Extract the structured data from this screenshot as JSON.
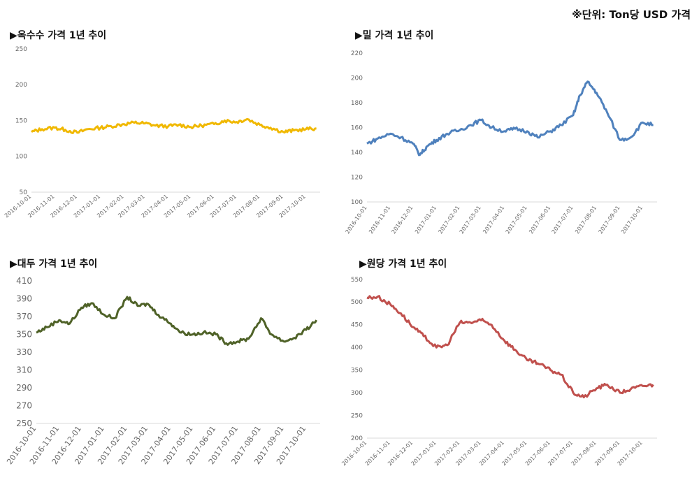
{
  "unit_note": "※단위: Ton당 USD 가격",
  "charts": [
    {
      "title": "▶옥수수 가격 1년 추이",
      "color": "#F0B800"
    },
    {
      "title": "▶밀 가격 1년 추이",
      "color": "#4F81BD"
    },
    {
      "title": "▶대두 가격 1년 추이",
      "color": "#4F6228"
    },
    {
      "title": "▶원당 가격 1년 추이",
      "color": "#C0504D"
    }
  ],
  "chart_data": [
    {
      "type": "line",
      "title": "옥수수 가격 1년 추이",
      "x_ticks": [
        "2016-10-01",
        "2016-11-01",
        "2016-12-01",
        "2017-01-01",
        "2017-02-01",
        "2017-03-01",
        "2017-04-01",
        "2017-05-01",
        "2017-06-01",
        "2017-07-01",
        "2017-08-01",
        "2017-09-01",
        "2017-10-01"
      ],
      "y_ticks": [
        "250",
        "200",
        "150",
        "100",
        "50"
      ],
      "ylim": [
        50,
        250
      ],
      "grid": false,
      "series": [
        {
          "x": [
            "2016-10-01",
            "2016-10-15",
            "2016-11-01",
            "2016-11-15",
            "2016-12-01",
            "2016-12-15",
            "2017-01-01",
            "2017-01-15",
            "2017-02-01",
            "2017-02-15",
            "2017-03-01",
            "2017-03-15",
            "2017-04-01",
            "2017-04-15",
            "2017-05-01",
            "2017-05-15",
            "2017-06-01",
            "2017-06-15",
            "2017-07-01",
            "2017-07-15",
            "2017-08-01",
            "2017-08-15",
            "2017-09-01",
            "2017-09-15",
            "2017-10-01",
            "2017-10-15"
          ],
          "values": [
            134,
            138,
            140,
            137,
            133,
            138,
            140,
            142,
            145,
            147,
            146,
            143,
            142,
            144,
            141,
            143,
            145,
            150,
            148,
            152,
            144,
            140,
            134,
            136,
            138,
            139
          ]
        }
      ]
    },
    {
      "type": "line",
      "title": "밀 가격 1년 추이",
      "x_ticks": [
        "2016-10-01",
        "2016-11-01",
        "2016-12-01",
        "2017-01-01",
        "2017-02-01",
        "2017-03-01",
        "2017-04-01",
        "2017-05-01",
        "2017-06-01",
        "2017-07-01",
        "2017-08-01",
        "2017-09-01",
        "2017-10-01"
      ],
      "y_ticks": [
        "220",
        "200",
        "180",
        "160",
        "140",
        "120",
        "100"
      ],
      "ylim": [
        100,
        220
      ],
      "grid": false,
      "series": [
        {
          "x": [
            "2016-10-01",
            "2016-10-15",
            "2016-11-01",
            "2016-11-15",
            "2016-12-01",
            "2016-12-10",
            "2016-12-20",
            "2017-01-01",
            "2017-01-15",
            "2017-02-01",
            "2017-02-15",
            "2017-03-01",
            "2017-03-15",
            "2017-04-01",
            "2017-04-15",
            "2017-05-01",
            "2017-05-15",
            "2017-06-01",
            "2017-06-15",
            "2017-07-01",
            "2017-07-10",
            "2017-07-20",
            "2017-08-01",
            "2017-08-15",
            "2017-09-01",
            "2017-09-15",
            "2017-10-01",
            "2017-10-15"
          ],
          "values": [
            147,
            151,
            155,
            152,
            147,
            138,
            145,
            150,
            155,
            158,
            162,
            166,
            160,
            157,
            159,
            157,
            152,
            157,
            162,
            170,
            186,
            197,
            188,
            172,
            150,
            152,
            164,
            162
          ]
        }
      ]
    },
    {
      "type": "line",
      "title": "대두 가격 1년 추이",
      "x_ticks": [
        "2016-10-01",
        "2016-11-01",
        "2016-12-01",
        "2017-01-01",
        "2017-02-01",
        "2017-03-01",
        "2017-04-01",
        "2017-05-01",
        "2017-06-01",
        "2017-07-01",
        "2017-08-01",
        "2017-09-01",
        "2017-10-01"
      ],
      "y_ticks": [
        "410",
        "390",
        "370",
        "350",
        "330",
        "310",
        "290",
        "270",
        "250"
      ],
      "ylim": [
        250,
        410
      ],
      "grid": false,
      "series": [
        {
          "x": [
            "2016-10-01",
            "2016-10-15",
            "2016-11-01",
            "2016-11-15",
            "2016-12-01",
            "2016-12-15",
            "2017-01-01",
            "2017-01-15",
            "2017-02-01",
            "2017-02-15",
            "2017-03-01",
            "2017-03-15",
            "2017-04-01",
            "2017-04-15",
            "2017-05-01",
            "2017-05-15",
            "2017-06-01",
            "2017-06-15",
            "2017-07-01",
            "2017-07-15",
            "2017-08-01",
            "2017-08-15",
            "2017-09-01",
            "2017-09-15",
            "2017-10-01",
            "2017-10-15"
          ],
          "values": [
            352,
            358,
            366,
            362,
            380,
            385,
            372,
            368,
            392,
            382,
            384,
            372,
            362,
            352,
            350,
            352,
            350,
            340,
            342,
            345,
            368,
            350,
            342,
            346,
            355,
            366
          ]
        }
      ]
    },
    {
      "type": "line",
      "title": "원당 가격 1년 추이",
      "x_ticks": [
        "2016-10-01",
        "2016-11-01",
        "2016-12-01",
        "2017-01-01",
        "2017-02-01",
        "2017-03-01",
        "2017-04-01",
        "2017-05-01",
        "2017-06-01",
        "2017-07-01",
        "2017-08-01",
        "2017-09-01",
        "2017-10-01"
      ],
      "y_ticks": [
        "550",
        "500",
        "450",
        "400",
        "350",
        "300",
        "250",
        "200"
      ],
      "ylim": [
        200,
        550
      ],
      "grid": false,
      "series": [
        {
          "x": [
            "2016-10-01",
            "2016-10-15",
            "2016-11-01",
            "2016-11-15",
            "2016-12-01",
            "2016-12-15",
            "2017-01-01",
            "2017-01-15",
            "2017-02-01",
            "2017-02-15",
            "2017-03-01",
            "2017-03-15",
            "2017-04-01",
            "2017-04-15",
            "2017-05-01",
            "2017-05-15",
            "2017-06-01",
            "2017-06-15",
            "2017-07-01",
            "2017-07-15",
            "2017-08-01",
            "2017-08-15",
            "2017-09-01",
            "2017-09-15",
            "2017-10-01",
            "2017-10-15"
          ],
          "values": [
            510,
            512,
            495,
            475,
            445,
            425,
            400,
            405,
            455,
            455,
            460,
            450,
            415,
            395,
            372,
            365,
            350,
            340,
            300,
            290,
            310,
            318,
            300,
            308,
            315,
            318
          ]
        }
      ]
    }
  ]
}
